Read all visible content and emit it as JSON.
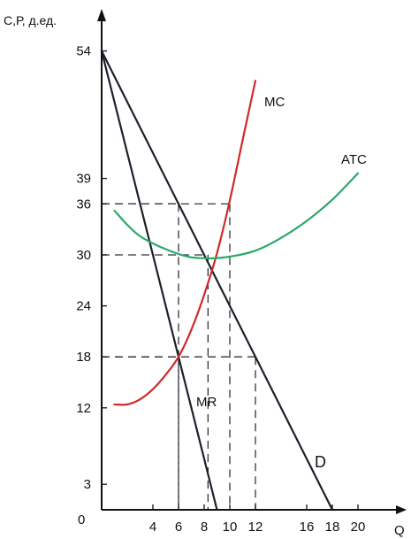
{
  "chart_data": {
    "type": "line",
    "ylabel": "С,Р, д.ед.",
    "xlabel": "Q",
    "origin_label": "0",
    "xlim": [
      0,
      23
    ],
    "ylim": [
      0,
      58
    ],
    "x_ticks": [
      4,
      6,
      8,
      10,
      12,
      16,
      18,
      20
    ],
    "y_ticks": [
      3,
      12,
      18,
      24,
      30,
      36,
      39,
      54
    ],
    "series": [
      {
        "name": "D",
        "color": "#1f1f2e",
        "kind": "straight",
        "x": [
          0,
          18
        ],
        "y": [
          54,
          0
        ]
      },
      {
        "name": "MR",
        "color": "#1f1f2e",
        "kind": "straight",
        "x": [
          0,
          9
        ],
        "y": [
          54,
          0
        ]
      },
      {
        "name": "MC",
        "color": "#d02a2a",
        "kind": "curve",
        "x": [
          1,
          2,
          3,
          4,
          5,
          6,
          7,
          8,
          9,
          10,
          11,
          12
        ],
        "y": [
          12.4,
          12.4,
          13,
          14.2,
          15.9,
          18,
          21.2,
          25.3,
          30.2,
          36.4,
          43.5,
          50.5
        ]
      },
      {
        "name": "ATC",
        "color": "#2aa86a",
        "kind": "curve",
        "x": [
          1,
          3,
          6,
          8,
          10,
          12,
          14,
          16,
          18,
          20
        ],
        "y": [
          35.2,
          32.2,
          30.1,
          29.6,
          29.8,
          30.5,
          32,
          34,
          36.5,
          39.6
        ]
      }
    ],
    "reference_lines": [
      {
        "x": 6,
        "y": 36
      },
      {
        "x": 10,
        "y": 36
      },
      {
        "x": 8.3,
        "y": 30
      },
      {
        "x": 6,
        "y": 18
      },
      {
        "x": 12,
        "y": 18
      }
    ],
    "grid": false,
    "legend": "labels placed on curves"
  }
}
